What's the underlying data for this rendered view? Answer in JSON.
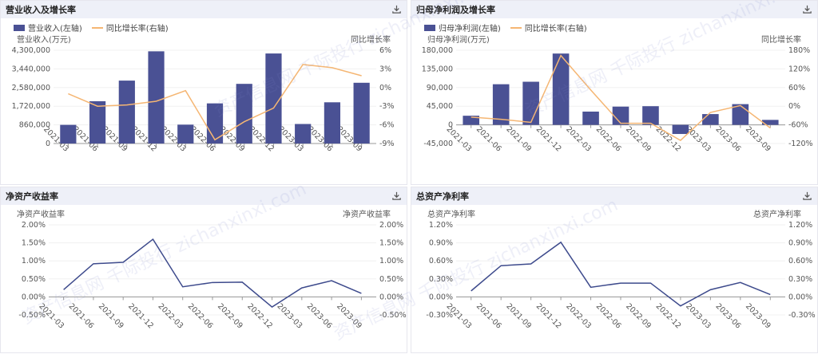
{
  "watermark": "资产信息网 千际投行 zichanxinxi.com",
  "colors": {
    "bar": "#4a5194",
    "line": "#f5b673",
    "line_dark": "#3d4a8c",
    "axis": "#888",
    "grid": "#f0f0f0",
    "text": "#555"
  },
  "icons": {
    "download": "download-icon"
  },
  "panels": [
    {
      "title": "营业收入及增长率",
      "legend_bar": "营业收入(左轴)",
      "legend_line": "同比增长率(右轴)"
    },
    {
      "title": "归母净利润及增长率",
      "legend_bar": "归母净利润(左轴)",
      "legend_line": "同比增长率(右轴)"
    },
    {
      "title": "净资产收益率"
    },
    {
      "title": "总资产净利率"
    }
  ],
  "chart_data": [
    {
      "type": "bar",
      "categories": [
        "2021-03",
        "2021-06",
        "2021-09",
        "2021-12",
        "2022-03",
        "2022-06",
        "2022-09",
        "2022-12",
        "2023-03",
        "2023-06",
        "2023-09"
      ],
      "series": [
        {
          "name": "营业收入(左轴)",
          "type": "bar",
          "axis": "left",
          "values": [
            860000,
            1950000,
            2900000,
            4250000,
            870000,
            1850000,
            2750000,
            4150000,
            900000,
            1900000,
            2800000
          ]
        },
        {
          "name": "同比增长率(右轴)",
          "type": "line",
          "axis": "right",
          "values": [
            -1.0,
            -3.0,
            -2.8,
            -2.2,
            -0.5,
            -8.4,
            -5.5,
            -3.3,
            3.7,
            3.2,
            1.9
          ]
        }
      ],
      "ylabel_left": "营业收入(万元)",
      "ylabel_right": "同比增长率",
      "ylim_left": [
        0,
        4300000
      ],
      "yticks_left": [
        "0",
        "860,000",
        "1,720,000",
        "2,580,000",
        "3,440,000",
        "4,300,000"
      ],
      "ylim_right": [
        -9,
        6
      ],
      "yticks_right": [
        "-9%",
        "-6%",
        "-3%",
        "0%",
        "3%",
        "6%"
      ],
      "legend": "top-left",
      "grid": true
    },
    {
      "type": "bar",
      "categories": [
        "2021-03",
        "2021-06",
        "2021-09",
        "2021-12",
        "2022-03",
        "2022-06",
        "2022-09",
        "2022-12",
        "2023-03",
        "2023-06",
        "2023-09"
      ],
      "series": [
        {
          "name": "归母净利润(左轴)",
          "type": "bar",
          "axis": "left",
          "values": [
            22000,
            98000,
            104000,
            172000,
            32000,
            44000,
            45000,
            -22000,
            26000,
            50000,
            12000
          ]
        },
        {
          "name": "同比增长率(右轴)",
          "type": "line",
          "axis": "right",
          "values": [
            -35,
            -42,
            -52,
            163,
            52,
            -55,
            -55,
            -110,
            -20,
            2,
            -70
          ]
        }
      ],
      "ylabel_left": "归母净利润(万元)",
      "ylabel_right": "同比增长率",
      "ylim_left": [
        -45000,
        180000
      ],
      "yticks_left": [
        "-45,000",
        "0",
        "45,000",
        "90,000",
        "135,000",
        "180,000"
      ],
      "ylim_right": [
        -120,
        180
      ],
      "yticks_right": [
        "-120%",
        "-60%",
        "0%",
        "60%",
        "120%",
        "180%"
      ],
      "legend": "top-left",
      "grid": true
    },
    {
      "type": "line",
      "categories": [
        "2021-03",
        "2021-06",
        "2021-09",
        "2021-12",
        "2022-03",
        "2022-06",
        "2022-09",
        "2022-12",
        "2023-03",
        "2023-06",
        "2023-09"
      ],
      "series": [
        {
          "name": "净资产收益率",
          "values": [
            0.2,
            0.92,
            0.96,
            1.6,
            0.28,
            0.4,
            0.41,
            -0.28,
            0.25,
            0.45,
            0.1
          ]
        }
      ],
      "ylabel_left": "净资产收益率",
      "ylabel_right": "净资产收益率",
      "ylim": [
        -0.5,
        2.0
      ],
      "yticks": [
        "-0.50%",
        "0.00%",
        "0.50%",
        "1.00%",
        "1.50%",
        "2.00%"
      ],
      "grid": true
    },
    {
      "type": "line",
      "categories": [
        "2021-03",
        "2021-06",
        "2021-09",
        "2021-12",
        "2022-03",
        "2022-06",
        "2022-09",
        "2022-12",
        "2023-03",
        "2023-06",
        "2023-09"
      ],
      "series": [
        {
          "name": "总资产净利率",
          "values": [
            0.1,
            0.52,
            0.55,
            0.91,
            0.16,
            0.23,
            0.23,
            -0.15,
            0.12,
            0.24,
            0.04
          ]
        }
      ],
      "ylabel_left": "总资产净利率",
      "ylabel_right": "总资产净利率",
      "ylim": [
        -0.3,
        1.2
      ],
      "yticks": [
        "-0.30%",
        "0.00%",
        "0.30%",
        "0.60%",
        "0.90%",
        "1.20%"
      ],
      "grid": true
    }
  ]
}
